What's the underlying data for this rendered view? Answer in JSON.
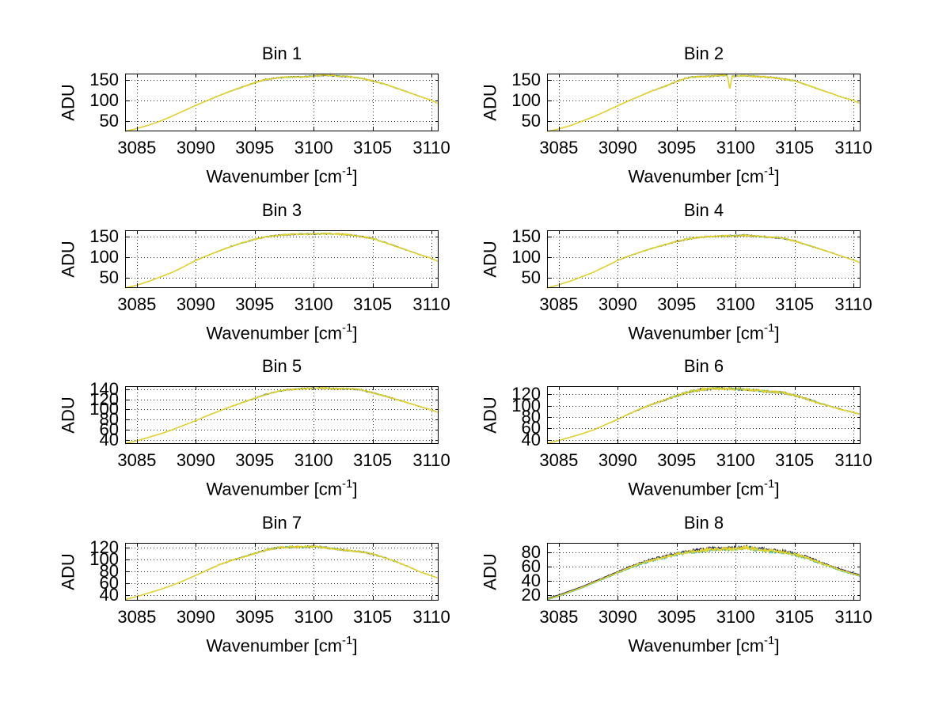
{
  "figure_background": "#ffffff",
  "labels": {
    "ylabel": "ADU",
    "xlabel_prefix": "Wavenumber [cm",
    "xlabel_sup": "-1",
    "xlabel_suffix": "]",
    "xlabel_full": "Wavenumber [cm^-1]"
  },
  "colors": {
    "background": "#ffffff",
    "text": "#000000",
    "axis": "#000000",
    "grid_dots": "#2a2a2a",
    "trace_dark": "#1c1c4e",
    "trace_teal": "#38b98e",
    "trace_yellow": "#e8d226"
  },
  "chart_data": [
    {
      "type": "line",
      "title": "Bin 1",
      "xlabel": "Wavenumber [cm^-1]",
      "ylabel": "ADU",
      "xlim": [
        3084,
        3110.6
      ],
      "xticks": [
        3085,
        3090,
        3095,
        3100,
        3105,
        3110
      ],
      "ylim": [
        25,
        165
      ],
      "yticks": [
        50,
        100,
        150
      ],
      "grid": true,
      "series": [
        {
          "name": "spectrum-dark-underlay",
          "color": "#1c1c4e"
        },
        {
          "name": "spectrum-teal-underlay",
          "color": "#38b98e"
        },
        {
          "name": "spectrum-main",
          "color": "#e8d226"
        }
      ],
      "noise_amplitude": 1.7,
      "trace_offsets": [
        0,
        0,
        0
      ],
      "anchor_points": [
        [
          3084,
          25
        ],
        [
          3085,
          32
        ],
        [
          3086,
          40
        ],
        [
          3087,
          50
        ],
        [
          3088,
          62
        ],
        [
          3089,
          75
        ],
        [
          3090,
          88
        ],
        [
          3091,
          100
        ],
        [
          3092,
          112
        ],
        [
          3093,
          123
        ],
        [
          3094,
          133
        ],
        [
          3095,
          143
        ],
        [
          3095.8,
          150
        ],
        [
          3097,
          155
        ],
        [
          3098,
          157
        ],
        [
          3099,
          157
        ],
        [
          3100,
          159
        ],
        [
          3101,
          161
        ],
        [
          3102,
          159
        ],
        [
          3103,
          158
        ],
        [
          3104,
          154
        ],
        [
          3105,
          147
        ],
        [
          3106,
          140
        ],
        [
          3107,
          130
        ],
        [
          3108,
          120
        ],
        [
          3109,
          110
        ],
        [
          3110,
          100
        ],
        [
          3110.6,
          92
        ]
      ]
    },
    {
      "type": "line",
      "title": "Bin 2",
      "xlabel": "Wavenumber [cm^-1]",
      "ylabel": "ADU",
      "xlim": [
        3084,
        3110.6
      ],
      "xticks": [
        3085,
        3090,
        3095,
        3100,
        3105,
        3110
      ],
      "ylim": [
        25,
        165
      ],
      "yticks": [
        50,
        100,
        150
      ],
      "grid": true,
      "series": [
        {
          "name": "spectrum-dark-underlay",
          "color": "#1c1c4e"
        },
        {
          "name": "spectrum-teal-underlay",
          "color": "#38b98e"
        },
        {
          "name": "spectrum-main",
          "color": "#e8d226"
        }
      ],
      "noise_amplitude": 1.7,
      "trace_offsets": [
        0,
        0,
        0
      ],
      "anchor_points": [
        [
          3084,
          24
        ],
        [
          3085,
          31
        ],
        [
          3086,
          39
        ],
        [
          3087,
          50
        ],
        [
          3088,
          61
        ],
        [
          3089,
          74
        ],
        [
          3090,
          87
        ],
        [
          3091,
          100
        ],
        [
          3092,
          112
        ],
        [
          3093,
          124
        ],
        [
          3094,
          134
        ],
        [
          3095,
          146
        ],
        [
          3095.8,
          154
        ],
        [
          3096.5,
          157
        ],
        [
          3097.5,
          158
        ],
        [
          3098.5,
          160
        ],
        [
          3099.2,
          161
        ],
        [
          3099.3,
          160
        ],
        [
          3099.5,
          128
        ],
        [
          3099.7,
          158
        ],
        [
          3100.5,
          160
        ],
        [
          3102,
          158
        ],
        [
          3103,
          156
        ],
        [
          3104,
          152
        ],
        [
          3105,
          148
        ],
        [
          3106,
          138
        ],
        [
          3107,
          128
        ],
        [
          3108,
          118
        ],
        [
          3109,
          108
        ],
        [
          3110,
          100
        ],
        [
          3110.6,
          92
        ]
      ]
    },
    {
      "type": "line",
      "title": "Bin 3",
      "xlabel": "Wavenumber [cm^-1]",
      "ylabel": "ADU",
      "xlim": [
        3084,
        3110.6
      ],
      "xticks": [
        3085,
        3090,
        3095,
        3100,
        3105,
        3110
      ],
      "ylim": [
        25,
        165
      ],
      "yticks": [
        50,
        100,
        150
      ],
      "grid": true,
      "series": [
        {
          "name": "spectrum-dark-underlay",
          "color": "#1c1c4e"
        },
        {
          "name": "spectrum-teal-underlay",
          "color": "#38b98e"
        },
        {
          "name": "spectrum-main",
          "color": "#e8d226"
        }
      ],
      "noise_amplitude": 1.8,
      "trace_offsets": [
        0,
        0,
        0
      ],
      "anchor_points": [
        [
          3084,
          25
        ],
        [
          3085,
          32
        ],
        [
          3086,
          41
        ],
        [
          3087,
          52
        ],
        [
          3088,
          63
        ],
        [
          3089,
          77
        ],
        [
          3090,
          92
        ],
        [
          3091,
          104
        ],
        [
          3092,
          115
        ],
        [
          3093,
          126
        ],
        [
          3094,
          135
        ],
        [
          3095,
          143
        ],
        [
          3096,
          149
        ],
        [
          3097,
          153
        ],
        [
          3098,
          155
        ],
        [
          3099,
          156
        ],
        [
          3100,
          156
        ],
        [
          3101,
          157
        ],
        [
          3102,
          156
        ],
        [
          3103,
          154
        ],
        [
          3104,
          150
        ],
        [
          3105,
          145
        ],
        [
          3106,
          136
        ],
        [
          3107,
          126
        ],
        [
          3108,
          116
        ],
        [
          3109,
          106
        ],
        [
          3110,
          97
        ],
        [
          3110.6,
          89
        ]
      ]
    },
    {
      "type": "line",
      "title": "Bin 4",
      "xlabel": "Wavenumber [cm^-1]",
      "ylabel": "ADU",
      "xlim": [
        3084,
        3110.6
      ],
      "xticks": [
        3085,
        3090,
        3095,
        3100,
        3105,
        3110
      ],
      "ylim": [
        25,
        165
      ],
      "yticks": [
        50,
        100,
        150
      ],
      "grid": true,
      "series": [
        {
          "name": "spectrum-dark-underlay",
          "color": "#1c1c4e"
        },
        {
          "name": "spectrum-teal-underlay",
          "color": "#38b98e"
        },
        {
          "name": "spectrum-main",
          "color": "#e8d226"
        }
      ],
      "noise_amplitude": 1.9,
      "trace_offsets": [
        0,
        0,
        0
      ],
      "anchor_points": [
        [
          3084,
          25
        ],
        [
          3085,
          33
        ],
        [
          3086,
          42
        ],
        [
          3087,
          53
        ],
        [
          3088,
          64
        ],
        [
          3089,
          78
        ],
        [
          3090,
          92
        ],
        [
          3091,
          103
        ],
        [
          3092,
          113
        ],
        [
          3093,
          122
        ],
        [
          3094,
          130
        ],
        [
          3095,
          138
        ],
        [
          3096,
          144
        ],
        [
          3097,
          148
        ],
        [
          3098,
          150
        ],
        [
          3099,
          151
        ],
        [
          3100,
          152
        ],
        [
          3100.8,
          153
        ],
        [
          3102,
          150
        ],
        [
          3103,
          148
        ],
        [
          3104,
          146
        ],
        [
          3105,
          139
        ],
        [
          3106,
          130
        ],
        [
          3107,
          121
        ],
        [
          3108,
          112
        ],
        [
          3109,
          102
        ],
        [
          3110,
          93
        ],
        [
          3110.6,
          86
        ]
      ]
    },
    {
      "type": "line",
      "title": "Bin 5",
      "xlabel": "Wavenumber [cm^-1]",
      "ylabel": "ADU",
      "xlim": [
        3084,
        3110.6
      ],
      "xticks": [
        3085,
        3090,
        3095,
        3100,
        3105,
        3110
      ],
      "ylim": [
        32,
        146
      ],
      "yticks": [
        40,
        60,
        80,
        100,
        120,
        140
      ],
      "grid": true,
      "series": [
        {
          "name": "spectrum-dark-underlay",
          "color": "#1c1c4e"
        },
        {
          "name": "spectrum-teal-underlay",
          "color": "#38b98e"
        },
        {
          "name": "spectrum-main",
          "color": "#e8d226"
        }
      ],
      "noise_amplitude": 1.4,
      "trace_offsets": [
        0,
        0,
        0
      ],
      "anchor_points": [
        [
          3084,
          33
        ],
        [
          3085,
          38
        ],
        [
          3086,
          45
        ],
        [
          3087,
          52
        ],
        [
          3088,
          60
        ],
        [
          3089,
          69
        ],
        [
          3090,
          78
        ],
        [
          3091,
          88
        ],
        [
          3092,
          97
        ],
        [
          3093,
          106
        ],
        [
          3094,
          114
        ],
        [
          3095,
          122
        ],
        [
          3096,
          130
        ],
        [
          3097,
          136
        ],
        [
          3097.8,
          139
        ],
        [
          3099,
          141
        ],
        [
          3100,
          142
        ],
        [
          3101,
          142
        ],
        [
          3102,
          141
        ],
        [
          3103,
          141
        ],
        [
          3104,
          139
        ],
        [
          3105,
          133
        ],
        [
          3106,
          127
        ],
        [
          3107,
          120
        ],
        [
          3108,
          113
        ],
        [
          3109,
          106
        ],
        [
          3110,
          99
        ],
        [
          3110.6,
          94
        ]
      ]
    },
    {
      "type": "line",
      "title": "Bin 6",
      "xlabel": "Wavenumber [cm^-1]",
      "ylabel": "ADU",
      "xlim": [
        3084,
        3110.6
      ],
      "xticks": [
        3085,
        3090,
        3095,
        3100,
        3105,
        3110
      ],
      "ylim": [
        33,
        134
      ],
      "yticks": [
        40,
        60,
        80,
        100,
        120
      ],
      "grid": true,
      "series": [
        {
          "name": "spectrum-dark-underlay",
          "color": "#1c1c4e"
        },
        {
          "name": "spectrum-teal-underlay",
          "color": "#38b98e"
        },
        {
          "name": "spectrum-main",
          "color": "#e8d226"
        }
      ],
      "noise_amplitude": 2.3,
      "trace_offsets": [
        0,
        0,
        0
      ],
      "anchor_points": [
        [
          3084,
          34
        ],
        [
          3085,
          39
        ],
        [
          3086,
          45
        ],
        [
          3087,
          51
        ],
        [
          3088,
          58
        ],
        [
          3089,
          67
        ],
        [
          3090,
          76
        ],
        [
          3091,
          86
        ],
        [
          3092,
          95
        ],
        [
          3093,
          103
        ],
        [
          3094,
          110
        ],
        [
          3095,
          117
        ],
        [
          3096,
          124
        ],
        [
          3097,
          128
        ],
        [
          3098,
          130
        ],
        [
          3099,
          130
        ],
        [
          3100,
          129
        ],
        [
          3101,
          128
        ],
        [
          3102,
          126
        ],
        [
          3103,
          124
        ],
        [
          3104,
          123
        ],
        [
          3105,
          118
        ],
        [
          3106,
          112
        ],
        [
          3107,
          105
        ],
        [
          3108,
          99
        ],
        [
          3109,
          93
        ],
        [
          3110,
          88
        ],
        [
          3110.6,
          85
        ]
      ]
    },
    {
      "type": "line",
      "title": "Bin 7",
      "xlabel": "Wavenumber [cm^-1]",
      "ylabel": "ADU",
      "xlim": [
        3084,
        3110.6
      ],
      "xticks": [
        3085,
        3090,
        3095,
        3100,
        3105,
        3110
      ],
      "ylim": [
        30,
        128
      ],
      "yticks": [
        40,
        60,
        80,
        100,
        120
      ],
      "grid": true,
      "series": [
        {
          "name": "spectrum-dark-underlay",
          "color": "#1c1c4e"
        },
        {
          "name": "spectrum-teal-underlay",
          "color": "#38b98e"
        },
        {
          "name": "spectrum-main",
          "color": "#e8d226"
        }
      ],
      "noise_amplitude": 1.6,
      "trace_offsets": [
        0,
        0,
        0
      ],
      "anchor_points": [
        [
          3084,
          32
        ],
        [
          3085,
          37
        ],
        [
          3086,
          43
        ],
        [
          3087,
          49
        ],
        [
          3088,
          56
        ],
        [
          3089,
          64
        ],
        [
          3090,
          73
        ],
        [
          3091,
          82
        ],
        [
          3092,
          91
        ],
        [
          3093,
          98
        ],
        [
          3094,
          104
        ],
        [
          3095,
          110
        ],
        [
          3096,
          116
        ],
        [
          3097,
          120
        ],
        [
          3098,
          121
        ],
        [
          3099,
          121
        ],
        [
          3100,
          122
        ],
        [
          3101,
          120
        ],
        [
          3102,
          117
        ],
        [
          3103,
          115
        ],
        [
          3104,
          113
        ],
        [
          3105,
          109
        ],
        [
          3106,
          103
        ],
        [
          3107,
          96
        ],
        [
          3108,
          88
        ],
        [
          3109,
          79
        ],
        [
          3110,
          72
        ],
        [
          3110.6,
          68
        ]
      ]
    },
    {
      "type": "line",
      "title": "Bin 8",
      "xlabel": "Wavenumber [cm^-1]",
      "ylabel": "ADU",
      "xlim": [
        3084,
        3110.6
      ],
      "xticks": [
        3085,
        3090,
        3095,
        3100,
        3105,
        3110
      ],
      "ylim": [
        12,
        94
      ],
      "yticks": [
        20,
        40,
        60,
        80
      ],
      "grid": true,
      "series": [
        {
          "name": "spectrum-dark-underlay",
          "color": "#1c1c4e"
        },
        {
          "name": "spectrum-teal-underlay",
          "color": "#38b98e"
        },
        {
          "name": "spectrum-main",
          "color": "#e8d226"
        }
      ],
      "noise_amplitude": 2.7,
      "trace_offsets": [
        1.2,
        -0.9,
        0
      ],
      "anchor_points": [
        [
          3084,
          14
        ],
        [
          3085,
          19
        ],
        [
          3086,
          25
        ],
        [
          3087,
          31
        ],
        [
          3088,
          38
        ],
        [
          3089,
          45
        ],
        [
          3090,
          52
        ],
        [
          3091,
          59
        ],
        [
          3092,
          65
        ],
        [
          3093,
          70
        ],
        [
          3094,
          74
        ],
        [
          3095,
          78
        ],
        [
          3096,
          81
        ],
        [
          3097,
          83
        ],
        [
          3098,
          85
        ],
        [
          3099,
          85
        ],
        [
          3100,
          86
        ],
        [
          3100.8,
          87
        ],
        [
          3102,
          85
        ],
        [
          3103,
          83
        ],
        [
          3104,
          81
        ],
        [
          3105,
          78
        ],
        [
          3106,
          73
        ],
        [
          3107,
          67
        ],
        [
          3108,
          61
        ],
        [
          3109,
          55
        ],
        [
          3110,
          50
        ],
        [
          3110.6,
          47
        ]
      ]
    }
  ]
}
